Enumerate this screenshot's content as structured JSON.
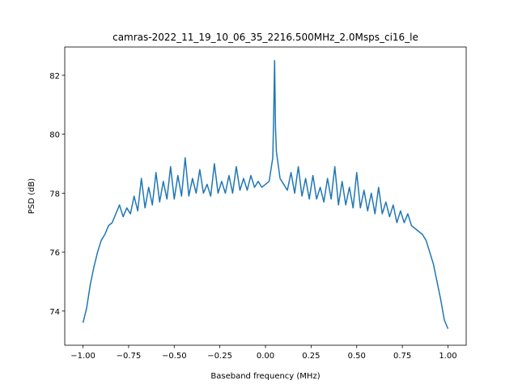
{
  "chart_data": {
    "type": "line",
    "title": "camras-2022_11_19_10_06_35_2216.500MHz_2.0Msps_ci16_le",
    "xlabel": "Baseband frequency (MHz)",
    "ylabel": "PSD (dB)",
    "color": "#1f77b4",
    "x": [
      -1.0,
      -0.98,
      -0.96,
      -0.94,
      -0.92,
      -0.9,
      -0.88,
      -0.86,
      -0.84,
      -0.82,
      -0.8,
      -0.78,
      -0.76,
      -0.74,
      -0.72,
      -0.7,
      -0.68,
      -0.66,
      -0.64,
      -0.62,
      -0.6,
      -0.58,
      -0.56,
      -0.54,
      -0.52,
      -0.5,
      -0.48,
      -0.46,
      -0.44,
      -0.42,
      -0.4,
      -0.38,
      -0.36,
      -0.34,
      -0.32,
      -0.3,
      -0.28,
      -0.26,
      -0.24,
      -0.22,
      -0.2,
      -0.18,
      -0.16,
      -0.14,
      -0.12,
      -0.1,
      -0.08,
      -0.06,
      -0.04,
      -0.02,
      0.0,
      0.02,
      0.04,
      0.045,
      0.05,
      0.055,
      0.06,
      0.08,
      0.1,
      0.12,
      0.14,
      0.16,
      0.18,
      0.2,
      0.22,
      0.24,
      0.26,
      0.28,
      0.3,
      0.32,
      0.34,
      0.36,
      0.38,
      0.4,
      0.42,
      0.44,
      0.46,
      0.48,
      0.5,
      0.52,
      0.54,
      0.56,
      0.58,
      0.6,
      0.62,
      0.64,
      0.66,
      0.68,
      0.7,
      0.72,
      0.74,
      0.76,
      0.78,
      0.8,
      0.82,
      0.84,
      0.86,
      0.88,
      0.9,
      0.92,
      0.94,
      0.96,
      0.98,
      1.0
    ],
    "values": [
      73.6,
      74.1,
      74.9,
      75.5,
      76.0,
      76.4,
      76.6,
      76.9,
      77.0,
      77.3,
      77.6,
      77.2,
      77.5,
      77.3,
      77.9,
      77.4,
      78.5,
      77.5,
      78.2,
      77.6,
      78.7,
      77.7,
      78.4,
      77.8,
      78.9,
      77.8,
      78.6,
      77.9,
      79.2,
      77.9,
      78.5,
      78.0,
      78.8,
      78.0,
      78.3,
      77.9,
      79.0,
      78.0,
      78.4,
      78.0,
      78.6,
      78.0,
      78.9,
      78.1,
      78.5,
      78.1,
      78.6,
      78.2,
      78.4,
      78.2,
      78.3,
      78.4,
      79.2,
      80.6,
      82.5,
      80.2,
      79.4,
      78.5,
      78.3,
      78.1,
      78.7,
      78.0,
      78.9,
      77.9,
      78.5,
      77.8,
      78.6,
      77.8,
      78.2,
      77.7,
      78.5,
      77.8,
      78.9,
      77.6,
      78.4,
      77.6,
      78.2,
      77.5,
      78.7,
      77.5,
      78.1,
      77.4,
      78.0,
      77.3,
      78.2,
      77.3,
      77.7,
      77.2,
      77.6,
      77.0,
      77.4,
      77.0,
      77.3,
      76.9,
      76.8,
      76.7,
      76.6,
      76.4,
      76.0,
      75.6,
      75.0,
      74.4,
      73.7,
      73.4
    ],
    "xlim": [
      -1.1,
      1.1
    ],
    "ylim": [
      72.84,
      82.96
    ],
    "xticks": [
      {
        "value": -1.0,
        "label": "−1.00"
      },
      {
        "value": -0.75,
        "label": "−0.75"
      },
      {
        "value": -0.5,
        "label": "−0.50"
      },
      {
        "value": -0.25,
        "label": "−0.25"
      },
      {
        "value": 0,
        "label": "0.00"
      },
      {
        "value": 0.25,
        "label": "0.25"
      },
      {
        "value": 0.5,
        "label": "0.50"
      },
      {
        "value": 0.75,
        "label": "0.75"
      },
      {
        "value": 1.0,
        "label": "1.00"
      }
    ],
    "yticks": [
      74,
      76,
      78,
      80,
      82
    ]
  }
}
